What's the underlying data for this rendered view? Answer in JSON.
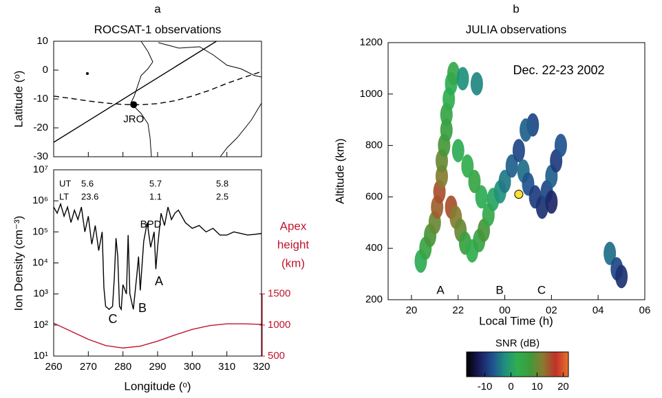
{
  "chart_data": [
    {
      "type": "map",
      "panel": "a",
      "title": "ROCSAT-1 observations",
      "ylabel": "Latitude (ᵒ)",
      "xlim": [
        260,
        320
      ],
      "ylim": [
        -30,
        10
      ],
      "yticks": [
        -30,
        -20,
        -10,
        0,
        10
      ],
      "series": [
        {
          "color": "#000000",
          "dashed": false,
          "x": [
            260,
            307
          ],
          "values": [
            -25,
            10
          ]
        },
        {
          "color": "#000000",
          "dashed": true,
          "x": [
            260,
            265,
            270,
            275,
            280,
            285,
            290,
            295,
            300,
            305,
            310,
            315,
            320
          ],
          "values": [
            -9,
            -9.8,
            -10.7,
            -11.4,
            -11.9,
            -12,
            -11.6,
            -10.6,
            -9,
            -7,
            -4.6,
            -2.5,
            -0.5
          ]
        }
      ],
      "points": {
        "x": [
          283.1
        ],
        "values": [
          -11.95
        ],
        "labels": [
          "JRO"
        ],
        "color": "#000000"
      }
    },
    {
      "type": "line",
      "log_y": true,
      "xlabel": "Longitude (ᵒ)",
      "ylabel": "Ion Density (cm⁻³)",
      "y2label": [
        "Apex",
        "height",
        "(km)"
      ],
      "y2color": "#c0142c",
      "xlim": [
        260,
        320
      ],
      "xticks": [
        260,
        270,
        280,
        290,
        300,
        310,
        320
      ],
      "ylim": [
        10,
        10000000
      ],
      "yticks": [
        {
          "value": 10,
          "label": "10¹"
        },
        {
          "value": 100,
          "label": "10²"
        },
        {
          "value": 1000,
          "label": "10³"
        },
        {
          "value": 10000,
          "label": "10⁴"
        },
        {
          "value": 100000,
          "label": "10⁵"
        },
        {
          "value": 1000000,
          "label": "10⁶"
        },
        {
          "value": 10000000,
          "label": "10⁷"
        }
      ],
      "y2lim": [
        500,
        3500
      ],
      "y2ticks": [
        500,
        1000,
        1500
      ],
      "ut_lt": [
        [
          "UT",
          "5.6",
          "5.7",
          "5.8"
        ],
        [
          "LT",
          "23.6",
          "1.1",
          "2.5"
        ]
      ],
      "annotations": [
        "BPD",
        "A",
        "B",
        "C"
      ],
      "series": [
        {
          "color": "#000000",
          "x": [
            260,
            261,
            262,
            263,
            264,
            265,
            266,
            267,
            268,
            269,
            270,
            271,
            272,
            273,
            274,
            274.5,
            275,
            276,
            277,
            277.5,
            278,
            278.5,
            279,
            279.5,
            280,
            281,
            281.5,
            282,
            283,
            284,
            284.5,
            285,
            286,
            287,
            288,
            289,
            289.5,
            290,
            291,
            292,
            293,
            294,
            295,
            296,
            297,
            298,
            300,
            302,
            304,
            306,
            308,
            310,
            312,
            314,
            316,
            318,
            320
          ],
          "values": [
            630000,
            400000,
            790000,
            320000,
            630000,
            200000,
            500000,
            250000,
            630000,
            100000,
            320000,
            40000,
            160000,
            25000,
            100000,
            1600,
            400,
            320,
            400,
            3200,
            63000,
            16000,
            400,
            320,
            2000,
            1000,
            79000,
            1000,
            320,
            4000,
            16000,
            1300,
            50000,
            200000,
            32000,
            100000,
            6300,
            32000,
            400000,
            160000,
            630000,
            250000,
            400000,
            500000,
            320000,
            200000,
            130000,
            160000,
            100000,
            130000,
            79000,
            79000,
            100000,
            89000,
            79000,
            83000,
            89000
          ]
        },
        {
          "color": "#c0142c",
          "axis": "y2",
          "x": [
            260,
            265,
            270,
            275,
            280,
            285,
            290,
            295,
            300,
            305,
            310,
            315,
            320
          ],
          "values": [
            1030,
            900,
            770,
            670,
            630,
            660,
            740,
            840,
            930,
            990,
            1020,
            1020,
            1010
          ]
        }
      ]
    },
    {
      "type": "scatter",
      "panel": "b",
      "title": "JULIA observations",
      "annotation": "Dec. 22-23 2002",
      "markers": [
        "A",
        "B",
        "C"
      ],
      "xlabel": "Local Time (h)",
      "ylabel": "Altitude (km)",
      "xlim": [
        19,
        30
      ],
      "xticks": [
        20,
        22,
        {
          "value": 24,
          "label": "00"
        },
        {
          "value": 26,
          "label": "02"
        },
        {
          "value": 28,
          "label": "04"
        },
        {
          "value": 30,
          "label": "06"
        }
      ],
      "ylim": [
        200,
        1200
      ],
      "yticks": [
        200,
        400,
        600,
        800,
        1000,
        1200
      ],
      "series": [
        {
          "x": [
            20.4,
            20.6,
            20.8,
            21.0,
            21.1,
            21.2,
            21.3,
            21.3,
            21.4,
            21.5,
            21.5,
            21.6,
            21.7,
            21.8,
            22.2,
            22.8,
            21.7,
            21.9,
            22.1,
            22.3,
            22.6,
            22.9,
            23.1,
            23.3,
            23.0,
            22.7,
            22.4,
            22.0,
            23.5,
            23.8,
            24.0,
            24.3,
            24.6,
            24.8,
            25.0,
            25.3,
            25.6,
            25.8,
            26.0,
            26.2,
            26.4,
            25.2,
            24.9,
            26.0,
            28.5,
            28.8,
            29.0
          ],
          "values": [
            350,
            400,
            450,
            500,
            560,
            620,
            680,
            740,
            800,
            860,
            920,
            980,
            1040,
            1080,
            1060,
            1040,
            560,
            520,
            470,
            420,
            390,
            430,
            470,
            530,
            600,
            660,
            720,
            780,
            590,
            620,
            660,
            720,
            780,
            700,
            650,
            600,
            560,
            620,
            680,
            740,
            800,
            880,
            860,
            580,
            380,
            320,
            290
          ],
          "snr": [
            2,
            5,
            8,
            10,
            14,
            15,
            12,
            10,
            8,
            6,
            5,
            3,
            2,
            4,
            -2,
            -3,
            15,
            12,
            10,
            6,
            3,
            5,
            8,
            4,
            2,
            5,
            3,
            2,
            1,
            -2,
            -4,
            -6,
            -8,
            -5,
            -7,
            -9,
            -10,
            -8,
            -6,
            -9,
            -7,
            -8,
            -6,
            -11,
            -5,
            -8,
            -10
          ]
        }
      ],
      "highlight": {
        "x": [
          24.6
        ],
        "values": [
          610
        ],
        "color": "#ffe033"
      },
      "colorbar": {
        "label": "SNR (dB)",
        "lim": [
          -17,
          22
        ],
        "ticks": [
          -10,
          0,
          10,
          20
        ],
        "colormap": [
          "#000000",
          "#1b1b5c",
          "#1f4f8f",
          "#1f8f80",
          "#2fae4f",
          "#3f9a3a",
          "#8a7a30",
          "#c0302a",
          "#e8742a"
        ]
      }
    }
  ]
}
